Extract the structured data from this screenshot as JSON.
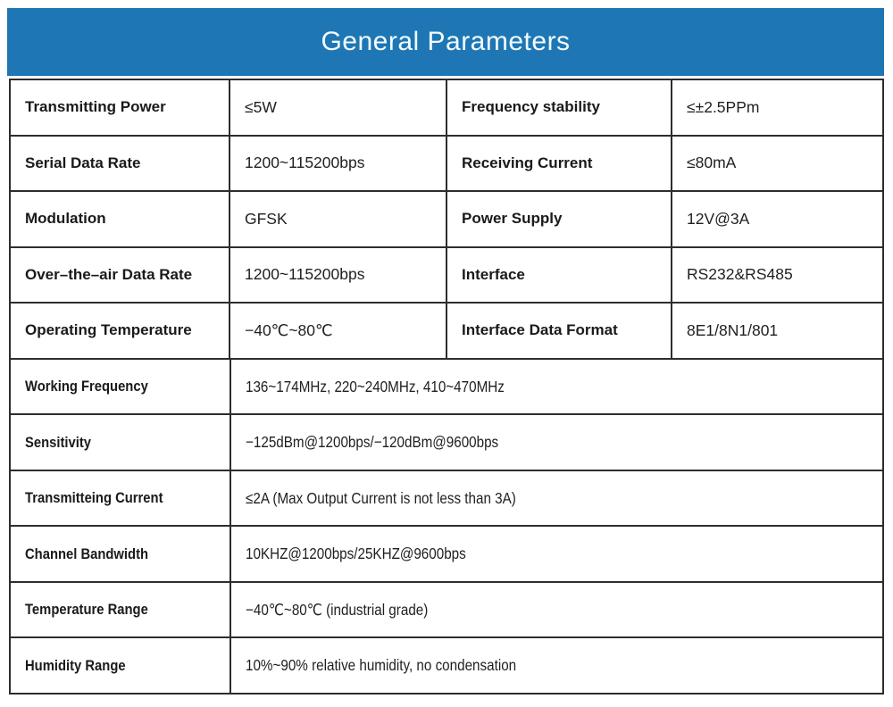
{
  "colors": {
    "header_bg": "#1e77b4",
    "header_text": "#f3fbff",
    "border_color": "#2d2d2d"
  },
  "header": {
    "title": "General Parameters"
  },
  "table": {
    "rows4": [
      {
        "l1": "Transmitting Power",
        "v1": "≤5W",
        "l2": "Frequency stability",
        "v2": "≤±2.5PPm"
      },
      {
        "l1": "Serial Data Rate",
        "v1": "1200~115200bps",
        "l2": "Receiving Current",
        "v2": "≤80mA"
      },
      {
        "l1": "Modulation",
        "v1": "GFSK",
        "l2": "Power Supply",
        "v2": "12V@3A"
      },
      {
        "l1": "Over–the–air Data Rate",
        "v1": "1200~115200bps",
        "l2": "Interface",
        "v2": "RS232&RS485"
      },
      {
        "l1": "Operating Temperature",
        "v1": "−40℃~80℃",
        "l2": "Interface Data Format",
        "v2": "8E1/8N1/801"
      }
    ],
    "rows2": [
      {
        "label": "Working Frequency",
        "value": "136~174MHz, 220~240MHz, 410~470MHz"
      },
      {
        "label": "Sensitivity",
        "value": "−125dBm@1200bps/−120dBm@9600bps"
      },
      {
        "label": "Transmitteing Current",
        "value": "≤2A (Max Output Current is not less than 3A)"
      },
      {
        "label": "Channel Bandwidth",
        "value": "10KHZ@1200bps/25KHZ@9600bps"
      },
      {
        "label": "Temperature Range",
        "value": "−40℃~80℃ (industrial grade)"
      },
      {
        "label": "Humidity Range",
        "value": "10%~90% relative humidity, no condensation"
      }
    ]
  }
}
